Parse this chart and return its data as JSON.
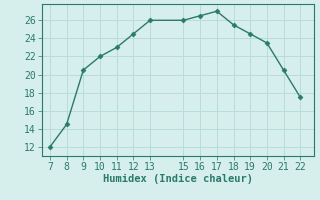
{
  "x": [
    7,
    8,
    9,
    10,
    11,
    12,
    13,
    15,
    16,
    17,
    18,
    19,
    20,
    21,
    22
  ],
  "y": [
    12,
    14.5,
    20.5,
    22,
    23,
    24.5,
    26,
    26,
    26.5,
    27,
    25.5,
    24.5,
    23.5,
    20.5,
    17.5
  ],
  "line_color": "#2a7a6a",
  "marker_color": "#2a7a6a",
  "bg_color": "#d6efec",
  "grid_color": "#b8dcd8",
  "xlabel": "Humidex (Indice chaleur)",
  "xlabel_fontsize": 7.5,
  "tick_fontsize": 7,
  "xlim": [
    6.5,
    22.8
  ],
  "ylim": [
    11.0,
    27.8
  ],
  "yticks": [
    12,
    14,
    16,
    18,
    20,
    22,
    24,
    26
  ],
  "xticks": [
    7,
    8,
    9,
    10,
    11,
    12,
    13,
    15,
    16,
    17,
    18,
    19,
    20,
    21,
    22
  ]
}
